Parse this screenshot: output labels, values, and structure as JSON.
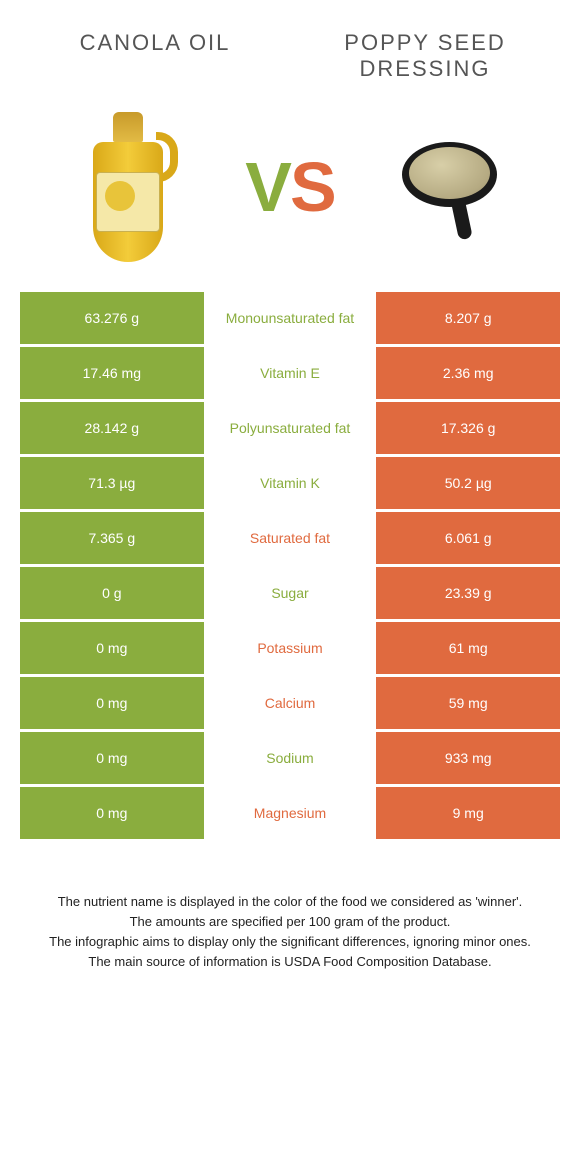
{
  "header": {
    "left_title": "CANOLA OIL",
    "right_title": "POPPY SEED DRESSING",
    "vs_v": "V",
    "vs_s": "S"
  },
  "colors": {
    "left_bg": "#8aad3e",
    "right_bg": "#e06a3f",
    "mid_green": "#8aad3e",
    "mid_orange": "#e06a3f",
    "cell_text": "#ffffff"
  },
  "rows": [
    {
      "left": "63.276 g",
      "label": "Monounsaturated fat",
      "right": "8.207 g",
      "winner": "left"
    },
    {
      "left": "17.46 mg",
      "label": "Vitamin E",
      "right": "2.36 mg",
      "winner": "left"
    },
    {
      "left": "28.142 g",
      "label": "Polyunsaturated fat",
      "right": "17.326 g",
      "winner": "left"
    },
    {
      "left": "71.3 µg",
      "label": "Vitamin K",
      "right": "50.2 µg",
      "winner": "left"
    },
    {
      "left": "7.365 g",
      "label": "Saturated fat",
      "right": "6.061 g",
      "winner": "right"
    },
    {
      "left": "0 g",
      "label": "Sugar",
      "right": "23.39 g",
      "winner": "left"
    },
    {
      "left": "0 mg",
      "label": "Potassium",
      "right": "61 mg",
      "winner": "right"
    },
    {
      "left": "0 mg",
      "label": "Calcium",
      "right": "59 mg",
      "winner": "right"
    },
    {
      "left": "0 mg",
      "label": "Sodium",
      "right": "933 mg",
      "winner": "left"
    },
    {
      "left": "0 mg",
      "label": "Magnesium",
      "right": "9 mg",
      "winner": "right"
    }
  ],
  "footnotes": [
    "The nutrient name is displayed in the color of the food we considered as 'winner'.",
    "The amounts are specified per 100 gram of the product.",
    "The infographic aims to display only the significant differences, ignoring minor ones.",
    "The main source of information is USDA Food Composition Database."
  ]
}
